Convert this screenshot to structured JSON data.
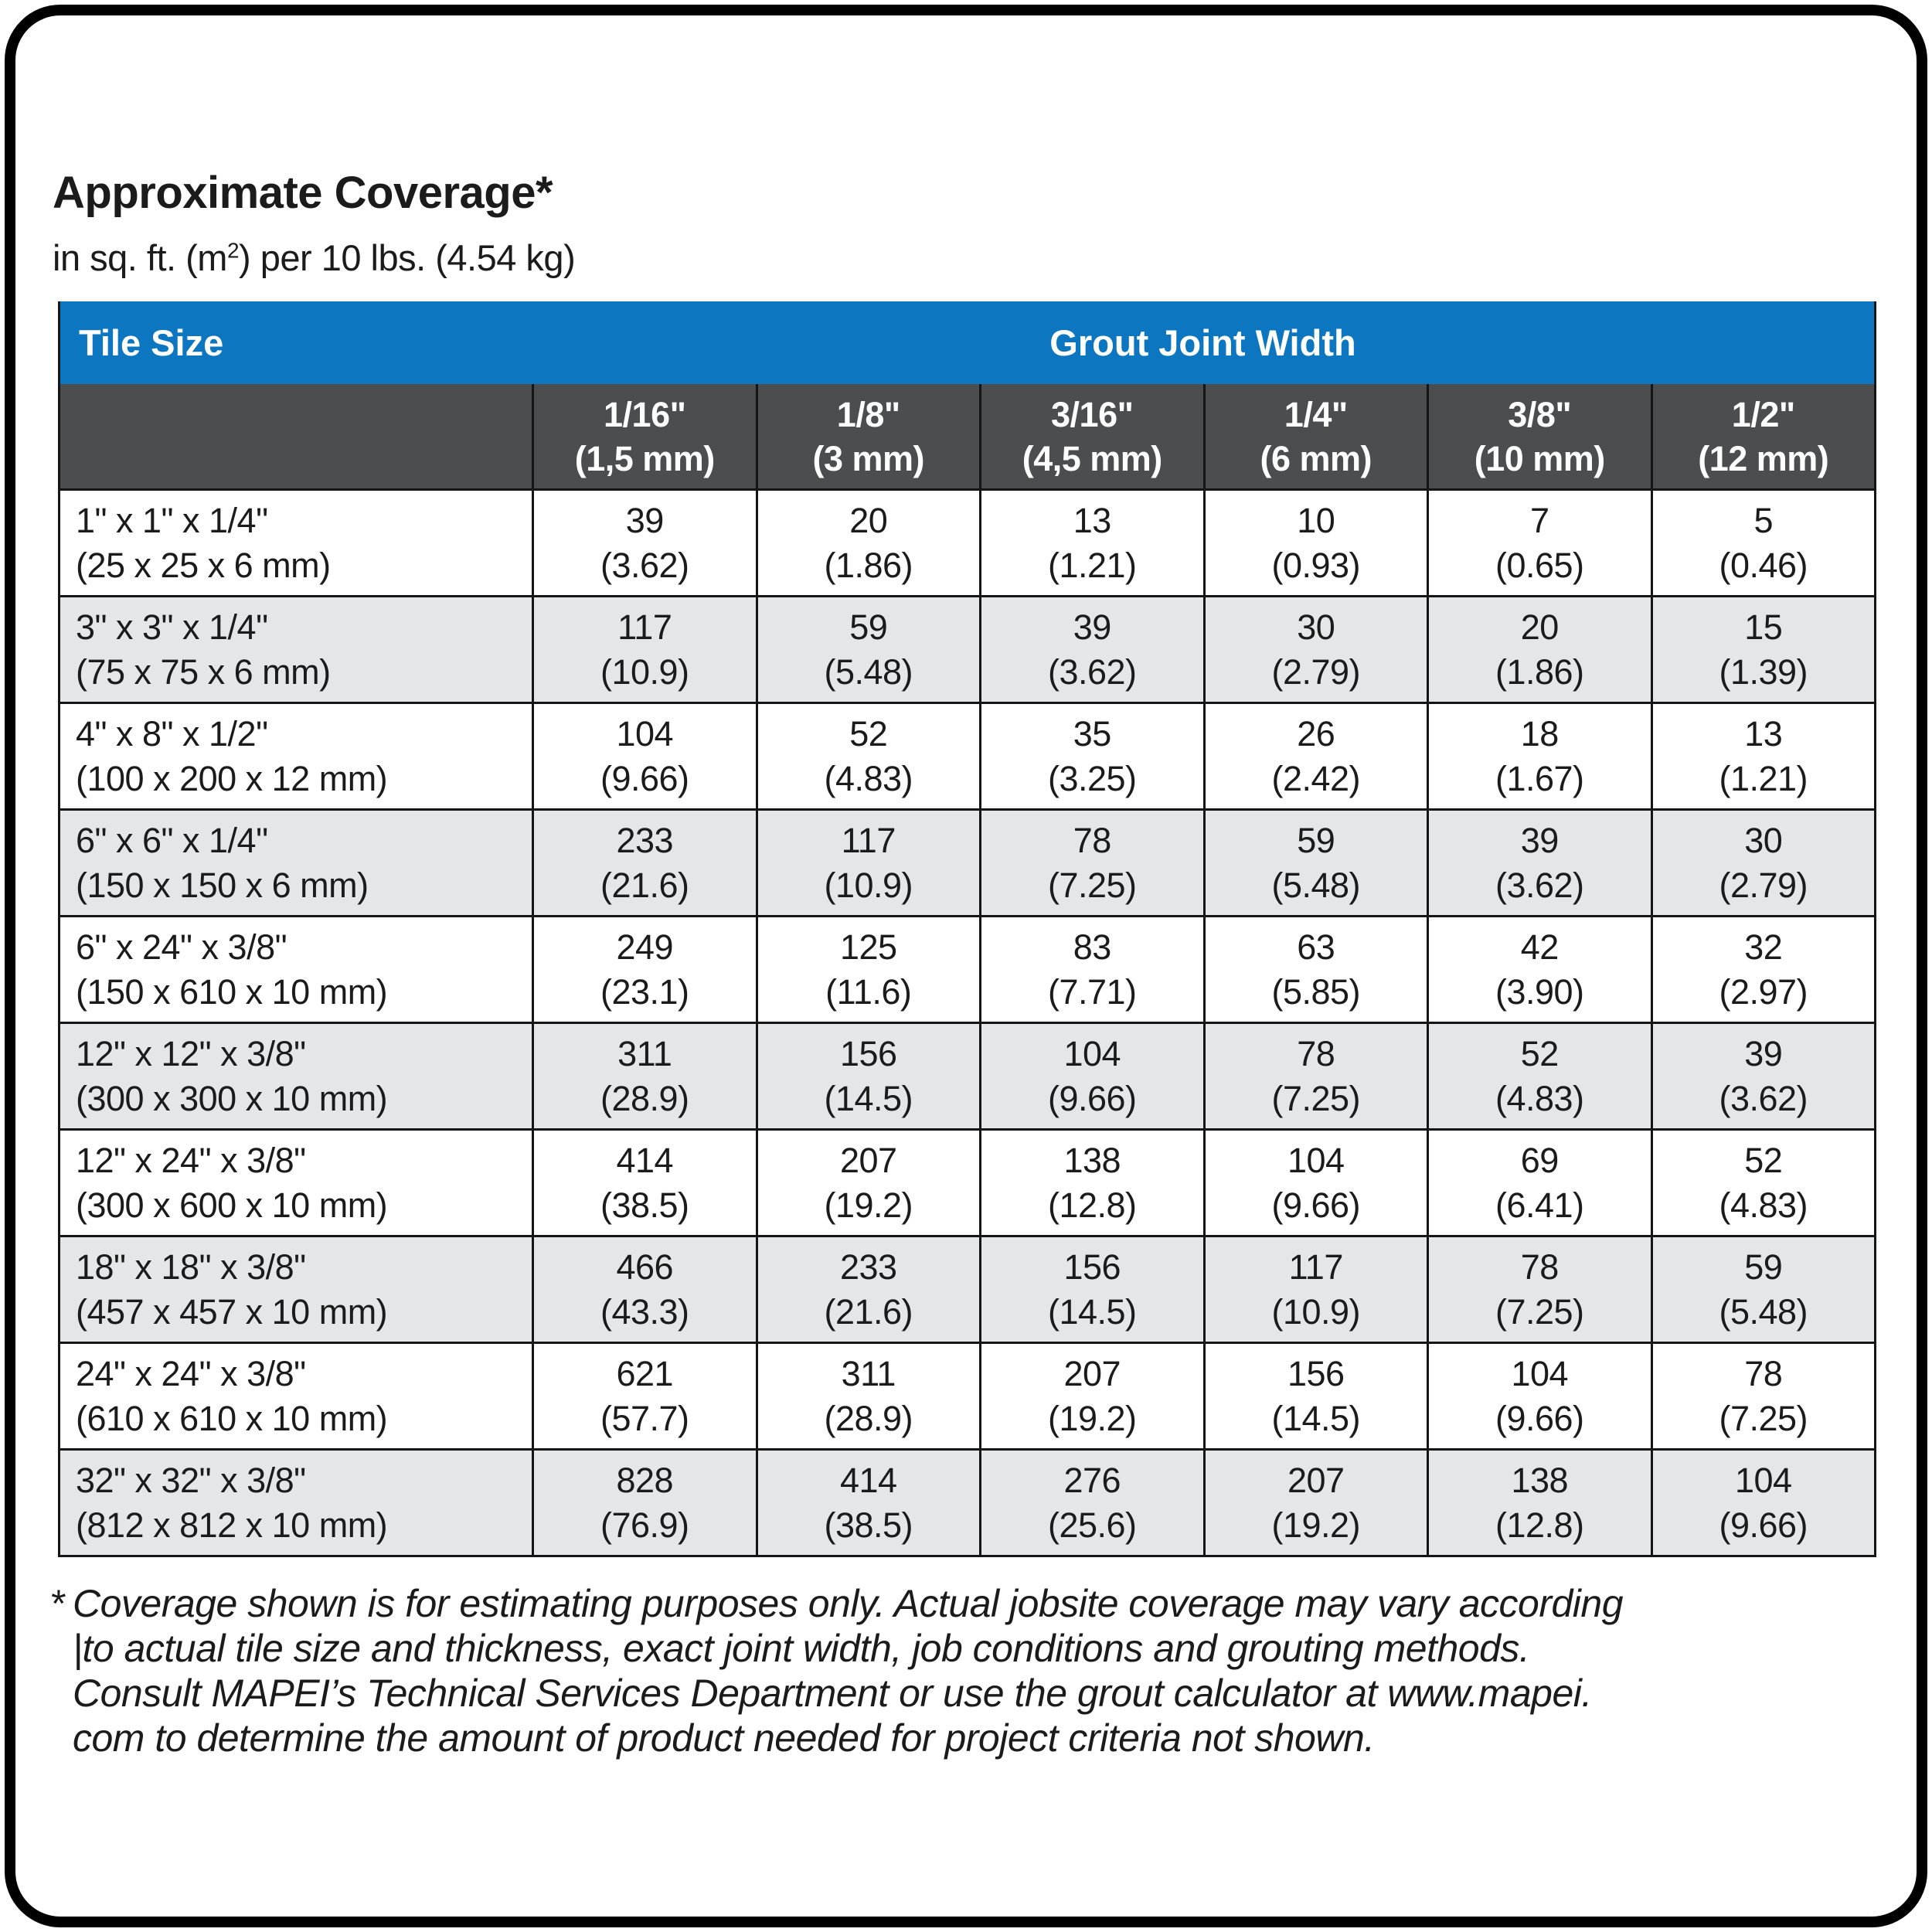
{
  "colors": {
    "header_blue": "#0d76c0",
    "header_gray": "#4c4d4f",
    "row_alternate": "#e5e6e7",
    "grid_line": "#151515",
    "text": "#1b1b1b"
  },
  "header": {
    "title": "Approximate Coverage*",
    "subtitle_pre": "in sq. ft. (m",
    "subtitle_sup": "2",
    "subtitle_post": ") per 10 lbs. (4.54 kg)"
  },
  "table": {
    "tile_size_label": "Tile Size",
    "group_header": "Grout Joint Width",
    "columns": [
      {
        "inch": "1/16\"",
        "metric": "(1,5 mm)"
      },
      {
        "inch": "1/8\"",
        "metric": "(3 mm)"
      },
      {
        "inch": "3/16\"",
        "metric": "(4,5 mm)"
      },
      {
        "inch": "1/4\"",
        "metric": "(6 mm)"
      },
      {
        "inch": "3/8\"",
        "metric": "(10 mm)"
      },
      {
        "inch": "1/2\"",
        "metric": "(12 mm)"
      }
    ],
    "rows": [
      {
        "size": "1\" x 1\" x 1/4\"",
        "size_metric": "(25 x 25 x 6 mm)",
        "values": [
          [
            "39",
            "(3.62)"
          ],
          [
            "20",
            "(1.86)"
          ],
          [
            "13",
            "(1.21)"
          ],
          [
            "10",
            "(0.93)"
          ],
          [
            "7",
            "(0.65)"
          ],
          [
            "5",
            "(0.46)"
          ]
        ]
      },
      {
        "size": "3\" x 3\" x 1/4\"",
        "size_metric": "(75 x 75 x 6 mm)",
        "values": [
          [
            "117",
            "(10.9)"
          ],
          [
            "59",
            "(5.48)"
          ],
          [
            "39",
            "(3.62)"
          ],
          [
            "30",
            "(2.79)"
          ],
          [
            "20",
            "(1.86)"
          ],
          [
            "15",
            "(1.39)"
          ]
        ]
      },
      {
        "size": "4\" x 8\" x 1/2\"",
        "size_metric": "(100 x 200 x 12 mm)",
        "values": [
          [
            "104",
            "(9.66)"
          ],
          [
            "52",
            "(4.83)"
          ],
          [
            "35",
            "(3.25)"
          ],
          [
            "26",
            "(2.42)"
          ],
          [
            "18",
            "(1.67)"
          ],
          [
            "13",
            "(1.21)"
          ]
        ]
      },
      {
        "size": "6\" x 6\" x 1/4\"",
        "size_metric": "(150 x 150 x 6 mm)",
        "values": [
          [
            "233",
            "(21.6)"
          ],
          [
            "117",
            "(10.9)"
          ],
          [
            "78",
            "(7.25)"
          ],
          [
            "59",
            "(5.48)"
          ],
          [
            "39",
            "(3.62)"
          ],
          [
            "30",
            "(2.79)"
          ]
        ]
      },
      {
        "size": "6\" x 24\" x 3/8\"",
        "size_metric": "(150 x 610 x 10 mm)",
        "values": [
          [
            "249",
            "(23.1)"
          ],
          [
            "125",
            "(11.6)"
          ],
          [
            "83",
            "(7.71)"
          ],
          [
            "63",
            "(5.85)"
          ],
          [
            "42",
            "(3.90)"
          ],
          [
            "32",
            "(2.97)"
          ]
        ]
      },
      {
        "size": "12\" x 12\" x 3/8\"",
        "size_metric": "(300 x 300 x 10 mm)",
        "values": [
          [
            "311",
            "(28.9)"
          ],
          [
            "156",
            "(14.5)"
          ],
          [
            "104",
            "(9.66)"
          ],
          [
            "78",
            "(7.25)"
          ],
          [
            "52",
            "(4.83)"
          ],
          [
            "39",
            "(3.62)"
          ]
        ]
      },
      {
        "size": "12\" x 24\" x 3/8\"",
        "size_metric": "(300 x 600 x 10 mm)",
        "values": [
          [
            "414",
            "(38.5)"
          ],
          [
            "207",
            "(19.2)"
          ],
          [
            "138",
            "(12.8)"
          ],
          [
            "104",
            "(9.66)"
          ],
          [
            "69",
            "(6.41)"
          ],
          [
            "52",
            "(4.83)"
          ]
        ]
      },
      {
        "size": "18\" x 18\" x 3/8\"",
        "size_metric": "(457 x 457 x 10 mm)",
        "values": [
          [
            "466",
            "(43.3)"
          ],
          [
            "233",
            "(21.6)"
          ],
          [
            "156",
            "(14.5)"
          ],
          [
            "117",
            "(10.9)"
          ],
          [
            "78",
            "(7.25)"
          ],
          [
            "59",
            "(5.48)"
          ]
        ]
      },
      {
        "size": "24\" x 24\" x 3/8\"",
        "size_metric": "(610 x 610 x 10 mm)",
        "values": [
          [
            "621",
            "(57.7)"
          ],
          [
            "311",
            "(28.9)"
          ],
          [
            "207",
            "(19.2)"
          ],
          [
            "156",
            "(14.5)"
          ],
          [
            "104",
            "(9.66)"
          ],
          [
            "78",
            "(7.25)"
          ]
        ]
      },
      {
        "size": "32\" x 32\" x 3/8\"",
        "size_metric": "(812 x 812 x 10 mm)",
        "values": [
          [
            "828",
            "(76.9)"
          ],
          [
            "414",
            "(38.5)"
          ],
          [
            "276",
            "(25.6)"
          ],
          [
            "207",
            "(19.2)"
          ],
          [
            "138",
            "(12.8)"
          ],
          [
            "104",
            "(9.66)"
          ]
        ]
      }
    ]
  },
  "footnote": {
    "marker": "*",
    "lines": [
      "Coverage shown is for estimating purposes only. Actual jobsite coverage may vary according",
      "|to actual tile size and thickness, exact joint width, job conditions and grouting methods.",
      "Consult MAPEI’s Technical Services Department or use the grout calculator at www.mapei.",
      "com to determine the amount of product needed for project criteria not shown."
    ]
  }
}
